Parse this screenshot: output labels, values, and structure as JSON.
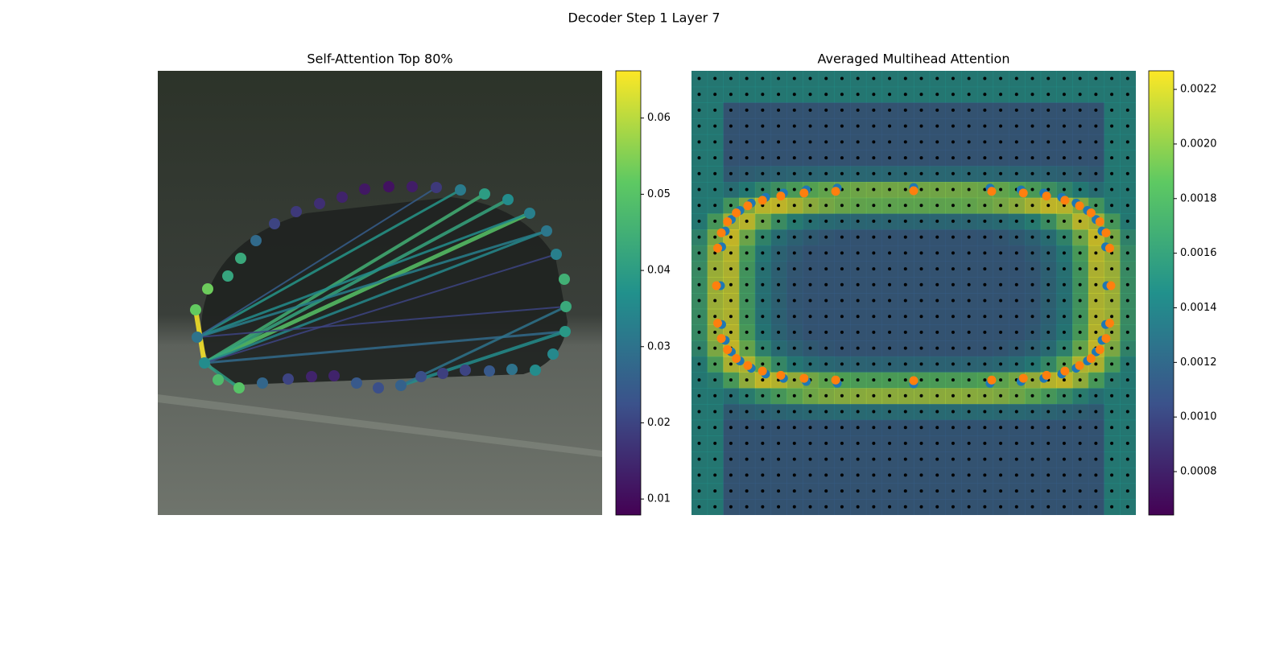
{
  "title": "Decoder Step 1 Layer 7",
  "chart_data": [
    {
      "type": "image",
      "title": "Self-Attention Top 80%",
      "colorbar": {
        "lim": [
          0.0079,
          0.0662
        ],
        "ticks": [
          0.01,
          0.02,
          0.03,
          0.04,
          0.05,
          0.06
        ]
      },
      "values": [
        0.052,
        0.053,
        0.042,
        0.043,
        0.028,
        0.02,
        0.018,
        0.016,
        0.014,
        0.012,
        0.011,
        0.013,
        0.018,
        0.032,
        0.04,
        0.036,
        0.033,
        0.031,
        0.033,
        0.045,
        0.043,
        0.039,
        0.035,
        0.036,
        0.03,
        0.024,
        0.02,
        0.019,
        0.022,
        0.026,
        0.022,
        0.024,
        0.014,
        0.014,
        0.02,
        0.027,
        0.05,
        0.048,
        0.036,
        0.03
      ]
    },
    {
      "type": "image",
      "title": "Averaged Multihead Attention",
      "colorbar": {
        "lim": [
          0.000641,
          0.002268
        ],
        "ticks": [
          0.0008,
          {
            "value": 0.001,
            "label": "0.0010"
          },
          0.0012,
          0.0014,
          0.0016,
          0.0018,
          {
            "value": 0.002,
            "label": "0.0020"
          },
          0.0022
        ]
      }
    }
  ]
}
